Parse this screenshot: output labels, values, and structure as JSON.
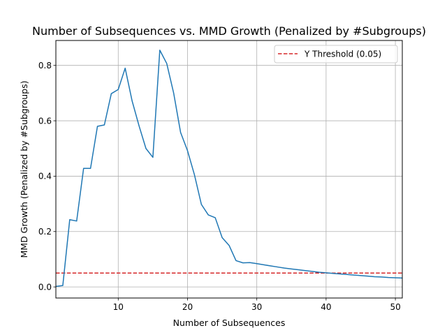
{
  "chart_data": {
    "type": "line",
    "title": "Number of Subsequences vs. MMD Growth (Penalized by #Subgroups)",
    "xlabel": "Number of Subsequences",
    "ylabel": "MMD Growth (Penalized by #Subgroups)",
    "xlim": [
      1,
      51
    ],
    "ylim": [
      -0.04,
      0.89
    ],
    "xticks": [
      10,
      20,
      30,
      40,
      50
    ],
    "yticks": [
      0.0,
      0.2,
      0.4,
      0.6,
      0.8
    ],
    "xtick_labels": [
      "10",
      "20",
      "30",
      "40",
      "50"
    ],
    "ytick_labels": [
      "0.0",
      "0.2",
      "0.4",
      "0.6",
      "0.8"
    ],
    "grid": true,
    "legend_position": "top-right",
    "series": [
      {
        "color": "#1f77b4",
        "x": [
          1,
          2,
          3,
          4,
          5,
          6,
          7,
          8,
          9,
          10,
          11,
          12,
          13,
          14,
          15,
          16,
          17,
          18,
          19,
          20,
          21,
          22,
          23,
          24,
          25,
          26,
          27,
          28,
          29,
          30,
          31,
          32,
          33,
          34,
          35,
          36,
          37,
          38,
          39,
          40,
          41,
          42,
          43,
          44,
          45,
          46,
          47,
          48,
          49,
          50,
          51
        ],
        "y": [
          0.002,
          0.005,
          0.243,
          0.238,
          0.428,
          0.428,
          0.58,
          0.585,
          0.698,
          0.713,
          0.79,
          0.672,
          0.582,
          0.5,
          0.468,
          0.855,
          0.807,
          0.7,
          0.558,
          0.492,
          0.405,
          0.298,
          0.26,
          0.25,
          0.178,
          0.15,
          0.095,
          0.087,
          0.088,
          0.084,
          0.08,
          0.076,
          0.072,
          0.068,
          0.065,
          0.062,
          0.059,
          0.056,
          0.053,
          0.051,
          0.049,
          0.047,
          0.045,
          0.043,
          0.041,
          0.039,
          0.037,
          0.036,
          0.034,
          0.033,
          0.032
        ]
      }
    ],
    "threshold": {
      "label": "Y Threshold (0.05)",
      "value": 0.05,
      "color": "#d62728"
    }
  }
}
